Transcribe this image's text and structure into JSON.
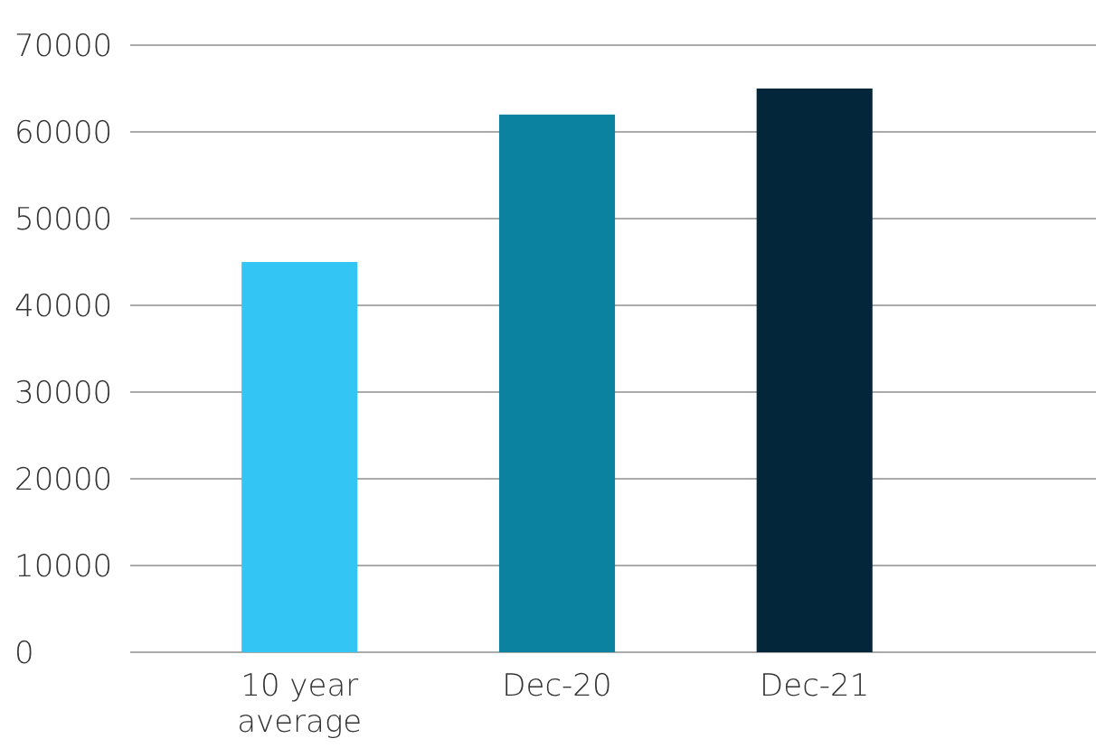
{
  "chart_data": {
    "type": "bar",
    "categories": [
      "10 year average",
      "Dec-20",
      "Dec-21"
    ],
    "values": [
      45000,
      62000,
      65000
    ],
    "colors": [
      "#33c5f3",
      "#0b82a0",
      "#03263b"
    ],
    "ylim": [
      0,
      70000
    ],
    "yticks": [
      0,
      10000,
      20000,
      30000,
      40000,
      50000,
      60000,
      70000
    ],
    "grid": "y"
  }
}
